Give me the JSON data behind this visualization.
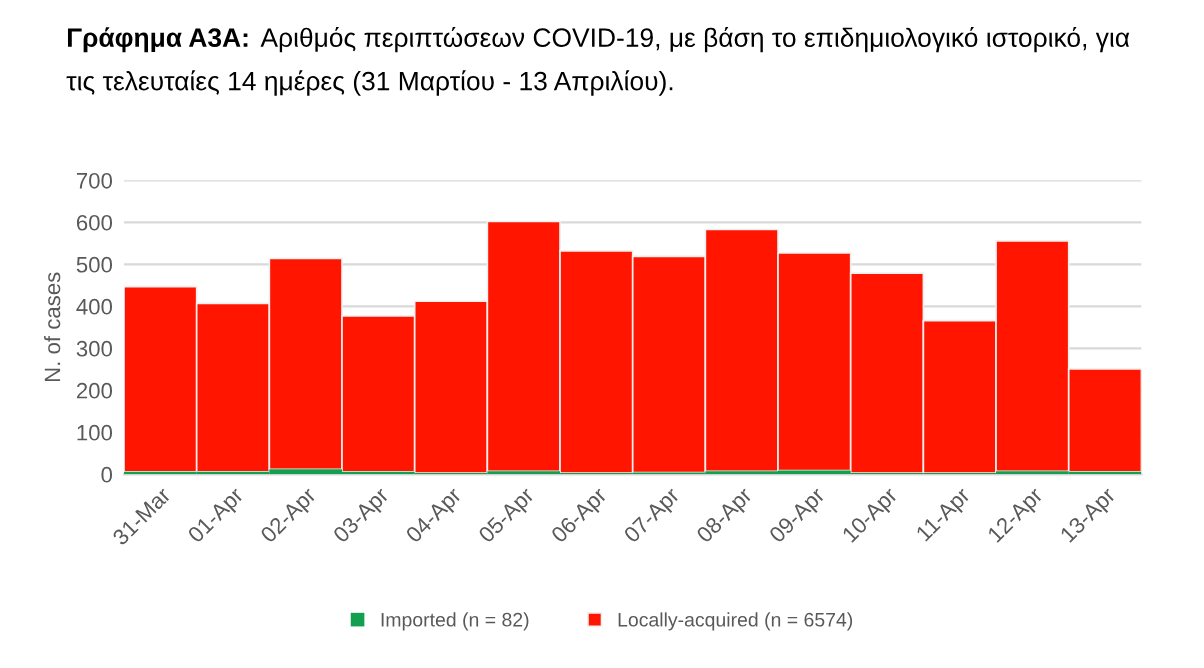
{
  "chart_data": {
    "type": "bar",
    "title": "Γράφημα Α3Α:",
    "subtitle": "Αριθμός περιπτώσεων COVID-19, με βάση το επιδημιολογικό ιστορικό, για τις τελευταίες 14 ημέρες (31 Μαρτίου - 13 Απριλίου).",
    "ylabel": "N. of cases",
    "categories": [
      "31-Mar",
      "01-Apr",
      "02-Apr",
      "03-Apr",
      "04-Apr",
      "05-Apr",
      "06-Apr",
      "07-Apr",
      "08-Apr",
      "09-Apr",
      "10-Apr",
      "11-Apr",
      "12-Apr",
      "13-Apr"
    ],
    "series": [
      {
        "name": "Imported (n = 82)",
        "color": "#12a050",
        "values": [
          6,
          6,
          12,
          6,
          3,
          7,
          3,
          4,
          7,
          9,
          3,
          3,
          7,
          6
        ]
      },
      {
        "name": "Locally-acquired (n = 6574)",
        "color": "#ff1500",
        "values": [
          441,
          401,
          502,
          371,
          409,
          595,
          529,
          515,
          576,
          518,
          476,
          363,
          549,
          245
        ]
      }
    ],
    "stacked": true,
    "ylim": [
      0,
      700
    ],
    "yticks": [
      0,
      100,
      200,
      300,
      400,
      500,
      600,
      700
    ],
    "grid": "y",
    "legend": "bottom"
  }
}
